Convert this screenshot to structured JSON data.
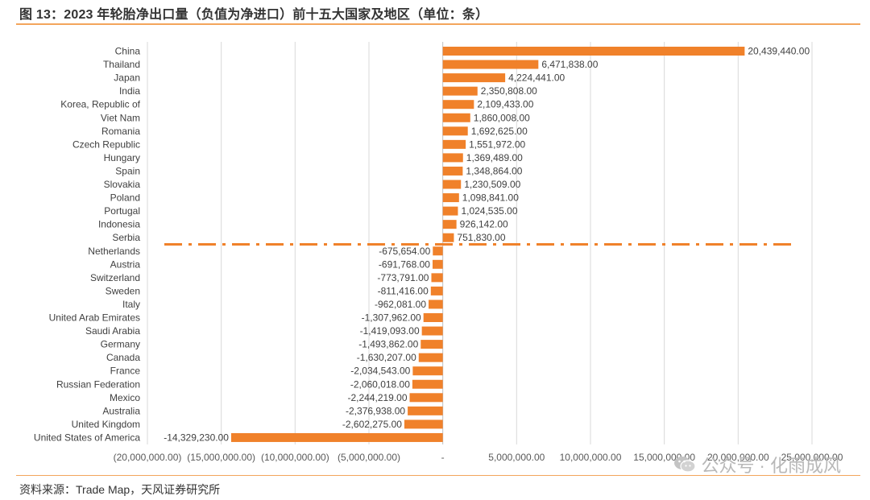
{
  "title": "图 13：2023 年轮胎净出口量（负值为净进口）前十五大国家及地区（单位：条）",
  "source": "资料来源：Trade Map，天风证券研究所",
  "watermark": "公众号 · 化雨成风",
  "colors": {
    "bar": "#f0812a",
    "rule": "#f3a55c",
    "grid": "#d9d9d9",
    "dashline": "#f0812a"
  },
  "chart_data": {
    "type": "bar",
    "orientation": "horizontal",
    "categories": [
      "China",
      "Thailand",
      "Japan",
      "India",
      "Korea, Republic of",
      "Viet Nam",
      "Romania",
      "Czech Republic",
      "Hungary",
      "Spain",
      "Slovakia",
      "Poland",
      "Portugal",
      "Indonesia",
      "Serbia",
      "Netherlands",
      "Austria",
      "Switzerland",
      "Sweden",
      "Italy",
      "United Arab Emirates",
      "Saudi Arabia",
      "Germany",
      "Canada",
      "France",
      "Russian Federation",
      "Mexico",
      "Australia",
      "United Kingdom",
      "United States of America"
    ],
    "values": [
      20439440,
      6471838,
      4224441,
      2350808,
      2109433,
      1860008,
      1692625,
      1551972,
      1369489,
      1348864,
      1230509,
      1098841,
      1024535,
      926142,
      751830,
      -675654,
      -691768,
      -773791,
      -811416,
      -962081,
      -1307962,
      -1419093,
      -1493862,
      -1630207,
      -2034543,
      -2060018,
      -2244219,
      -2376938,
      -2602275,
      -14329230
    ],
    "value_labels": [
      "20,439,440.00",
      "6,471,838.00",
      "4,224,441.00",
      "2,350,808.00",
      "2,109,433.00",
      "1,860,008.00",
      "1,692,625.00",
      "1,551,972.00",
      "1,369,489.00",
      "1,348,864.00",
      "1,230,509.00",
      "1,098,841.00",
      "1,024,535.00",
      "926,142.00",
      "751,830.00",
      "-675,654.00",
      "-691,768.00",
      "-773,791.00",
      "-811,416.00",
      "-962,081.00",
      "-1,307,962.00",
      "-1,419,093.00",
      "-1,493,862.00",
      "-1,630,207.00",
      "-2,034,543.00",
      "-2,060,018.00",
      "-2,244,219.00",
      "-2,376,938.00",
      "-2,602,275.00",
      "-14,329,230.00"
    ],
    "xlim": [
      -20000000,
      25000000
    ],
    "x_ticks": [
      -20000000,
      -15000000,
      -10000000,
      -5000000,
      0,
      5000000,
      10000000,
      15000000,
      20000000,
      25000000
    ],
    "x_tick_labels": [
      "(20,000,000.00)",
      "(15,000,000.00)",
      "(10,000,000.00)",
      "(5,000,000.00)",
      "-",
      "5,000,000.00",
      "10,000,000.00",
      "15,000,000.00",
      "20,000,000.00",
      "25,000,000.00"
    ],
    "grid": "vertical",
    "separator": "dash-dot line between Serbia and Netherlands"
  }
}
